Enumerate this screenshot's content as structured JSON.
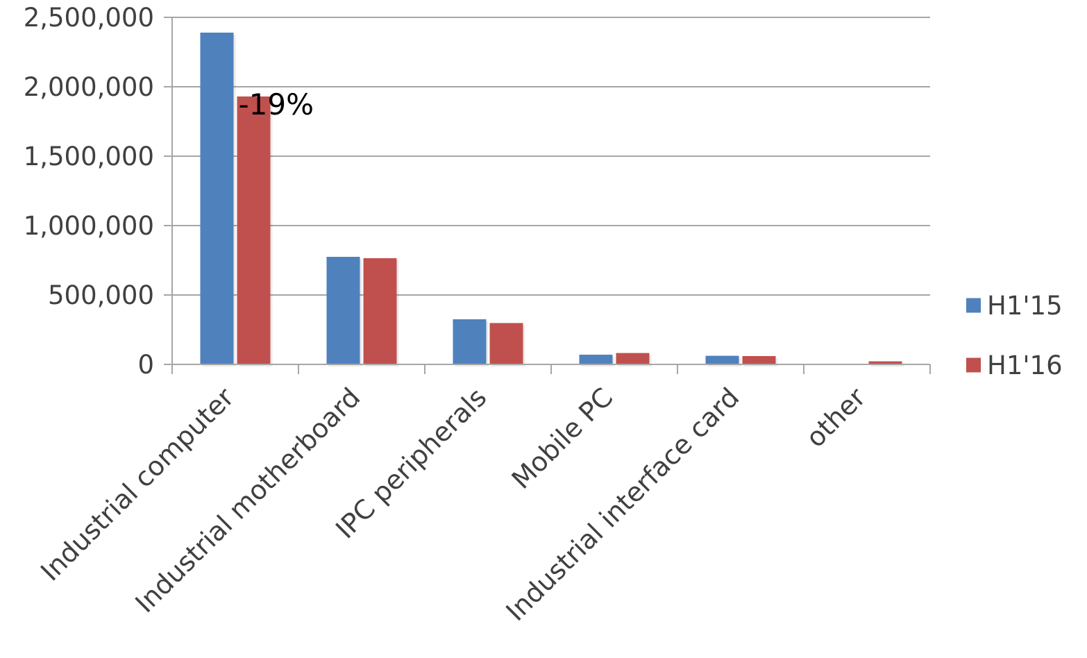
{
  "chart_data": {
    "type": "bar",
    "title": "",
    "xlabel": "",
    "ylabel": "",
    "ylim": [
      0,
      2500000
    ],
    "yticks": [
      0,
      500000,
      1000000,
      1500000,
      2000000,
      2500000
    ],
    "ytick_labels": [
      "0",
      "500,000",
      "1,000,000",
      "1,500,000",
      "2,000,000",
      "2,500,000"
    ],
    "grid": true,
    "legend_position": "right",
    "categories": [
      "Industrial computer",
      "Industrial motherboard",
      "IPC peripherals",
      "Mobile PC",
      "Industrial interface card",
      "other"
    ],
    "series": [
      {
        "name": "H1'15",
        "color": "#4f81bd",
        "values": [
          2390000,
          775000,
          325000,
          70000,
          62000,
          0
        ]
      },
      {
        "name": "H1'16",
        "color": "#c0504d",
        "values": [
          1930000,
          765000,
          298000,
          82000,
          60000,
          22000
        ]
      }
    ],
    "annotations": [
      {
        "text": "-19%",
        "category": "Industrial computer",
        "series": "H1'16"
      }
    ]
  }
}
